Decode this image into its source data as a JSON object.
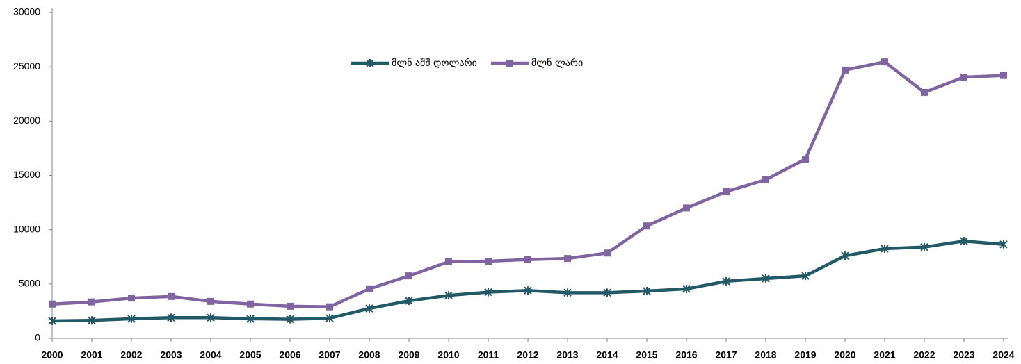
{
  "chart_data": {
    "type": "line",
    "categories": [
      "2000",
      "2001",
      "2002",
      "2003",
      "2004",
      "2005",
      "2006",
      "2007",
      "2008",
      "2009",
      "2010",
      "2011",
      "2012",
      "2013",
      "2014",
      "2015",
      "2016",
      "2017",
      "2018",
      "2019",
      "2020",
      "2021",
      "2022",
      "2023",
      "2024"
    ],
    "series": [
      {
        "name": "მლნ აშშ დოლარი",
        "color": "#215967",
        "marker": "asterisk",
        "values": [
          1600,
          1650,
          1800,
          1900,
          1900,
          1800,
          1750,
          1850,
          2750,
          3450,
          3950,
          4250,
          4400,
          4200,
          4200,
          4350,
          4550,
          5250,
          5500,
          5750,
          7600,
          8250,
          8400,
          8950,
          8650
        ]
      },
      {
        "name": "მლნ ლარი",
        "color": "#8064a2",
        "marker": "square",
        "values": [
          3150,
          3350,
          3700,
          3850,
          3400,
          3150,
          2950,
          2900,
          4550,
          5750,
          7050,
          7100,
          7250,
          7350,
          7850,
          10350,
          12000,
          13500,
          14600,
          16500,
          24700,
          25450,
          22650,
          24050,
          24200
        ]
      }
    ],
    "ylim": [
      0,
      30000
    ],
    "yticks": [
      0,
      5000,
      10000,
      15000,
      20000,
      25000,
      30000
    ],
    "grid": false,
    "legend": "top"
  }
}
